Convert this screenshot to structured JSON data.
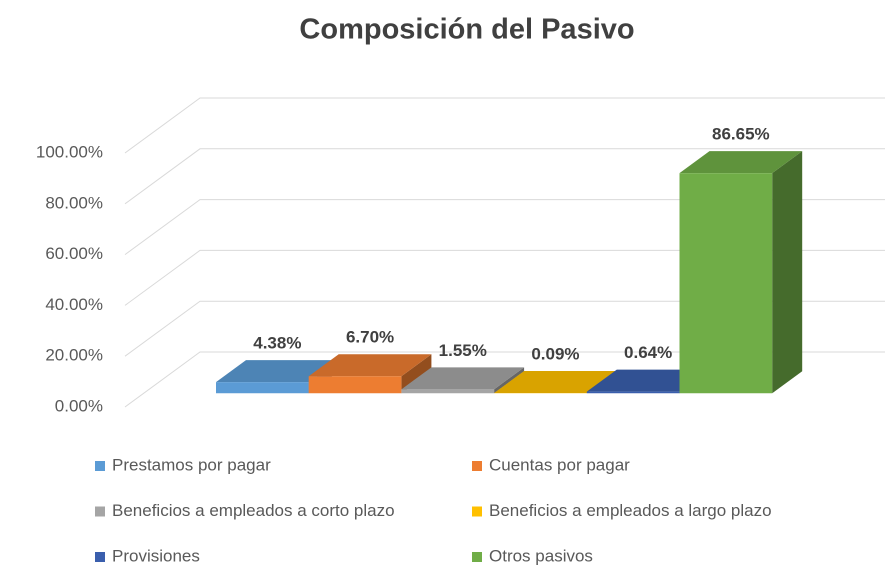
{
  "chart_data": {
    "type": "bar3d",
    "title": "Composición del Pasivo",
    "ylim": [
      0,
      100
    ],
    "yticks": [
      {
        "value": 0,
        "label": "0.00%"
      },
      {
        "value": 20,
        "label": "20.00%"
      },
      {
        "value": 40,
        "label": "40.00%"
      },
      {
        "value": 60,
        "label": "60.00%"
      },
      {
        "value": 80,
        "label": "80.00%"
      },
      {
        "value": 100,
        "label": "100.00%"
      }
    ],
    "grid": true,
    "legend": "bottom",
    "series": [
      {
        "name": "Prestamos por pagar",
        "color": "#5b9bd5",
        "values": [
          4.38
        ],
        "value_labels": [
          "4.38%"
        ]
      },
      {
        "name": "Cuentas por pagar",
        "color": "#ed7d31",
        "values": [
          6.7
        ],
        "value_labels": [
          "6.70%"
        ]
      },
      {
        "name": "Beneficios a empleados a corto plazo",
        "color": "#a5a5a5",
        "values": [
          1.55
        ],
        "value_labels": [
          "1.55%"
        ]
      },
      {
        "name": "Beneficios a empleados a largo plazo",
        "color": "#ffc000",
        "values": [
          0.09
        ],
        "value_labels": [
          "0.09%"
        ]
      },
      {
        "name": "Provisiones",
        "color": "#3a5fad",
        "values": [
          0.64
        ],
        "value_labels": [
          "0.64%"
        ]
      },
      {
        "name": "Otros pasivos",
        "color": "#70ad47",
        "values": [
          86.65
        ],
        "value_labels": [
          "86.65%"
        ]
      }
    ]
  }
}
